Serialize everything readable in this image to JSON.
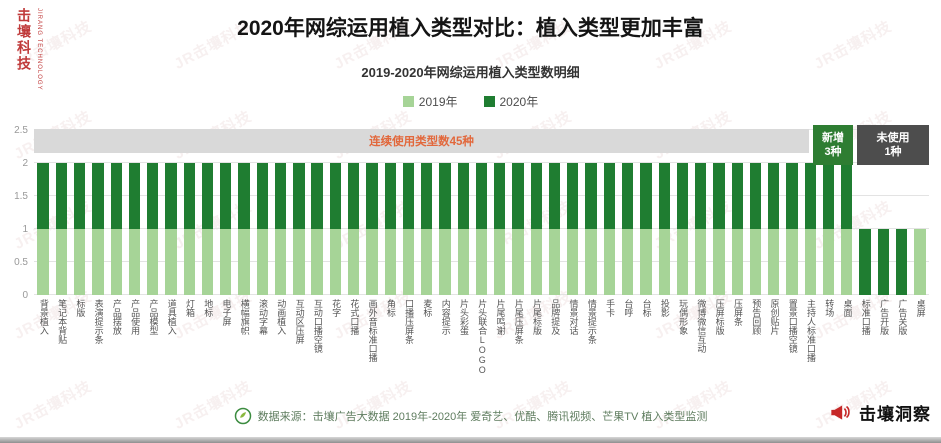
{
  "title": "2020年网综运用植入类型对比：植入类型更加丰富",
  "watermark": {
    "brand_vertical": "击壤科技",
    "brand_en": "JIRANG TECHNOLOGY",
    "tile_text": "JR击壤科技"
  },
  "colors": {
    "bar_2019": "#a6d497",
    "bar_2020": "#1f7d31",
    "band_bg": "#d9d9d9",
    "band_text": "#e2683c",
    "badge_new_bg": "#2e7d32",
    "badge_unused_bg": "#4d4d4d",
    "brand_red": "#c03b3b"
  },
  "chart_data": {
    "type": "bar",
    "subtitle": "2019-2020年网综运用植入类型数明细",
    "stacked": true,
    "ylim": [
      0,
      2.5
    ],
    "yticks": [
      0,
      0.5,
      1,
      1.5,
      2,
      2.5
    ],
    "ytick_labels": [
      "0",
      "0.5",
      "1",
      "1.5",
      "2",
      "2.5"
    ],
    "legend": [
      {
        "name": "2019年",
        "color": "#a6d497"
      },
      {
        "name": "2020年",
        "color": "#1f7d31"
      }
    ],
    "categories": [
      "背景植入",
      "笔记本背贴",
      "标版",
      "表演提示条",
      "产品摆放",
      "产品使用",
      "产品模型",
      "道具植入",
      "灯箱",
      "地标",
      "电子屏",
      "横幅旗帜",
      "滚动字幕",
      "动画植入",
      "互动区压屏",
      "互动口播空镜",
      "花字",
      "花式口播",
      "画外音标准口播",
      "角标",
      "口播压屏条",
      "麦标",
      "内容提示",
      "片头彩蛋",
      "片头联合LOGO",
      "片尾鸣谢",
      "片尾压屏条",
      "片尾标版",
      "品牌提及",
      "情景对话",
      "情景提示条",
      "手卡",
      "台呼",
      "台标",
      "投影",
      "玩偶形象",
      "微博微信互动",
      "压屏标版",
      "压屏条",
      "预告回顾",
      "原创贴片",
      "置景口播空镜",
      "主持人标准口播",
      "转场",
      "桌面",
      "标准口播",
      "广告开版",
      "广告关版",
      "桌屏"
    ],
    "series": [
      {
        "name": "2019年",
        "values": [
          1,
          1,
          1,
          1,
          1,
          1,
          1,
          1,
          1,
          1,
          1,
          1,
          1,
          1,
          1,
          1,
          1,
          1,
          1,
          1,
          1,
          1,
          1,
          1,
          1,
          1,
          1,
          1,
          1,
          1,
          1,
          1,
          1,
          1,
          1,
          1,
          1,
          1,
          1,
          1,
          1,
          1,
          1,
          1,
          1,
          0,
          0,
          0,
          1
        ]
      },
      {
        "name": "2020年",
        "values": [
          1,
          1,
          1,
          1,
          1,
          1,
          1,
          1,
          1,
          1,
          1,
          1,
          1,
          1,
          1,
          1,
          1,
          1,
          1,
          1,
          1,
          1,
          1,
          1,
          1,
          1,
          1,
          1,
          1,
          1,
          1,
          1,
          1,
          1,
          1,
          1,
          1,
          1,
          1,
          1,
          1,
          1,
          1,
          1,
          1,
          1,
          1,
          1,
          0
        ]
      }
    ],
    "annotations": {
      "band": "连续使用类型数45种",
      "new_line1": "新增",
      "new_line2": "3种",
      "unused_line1": "未使用",
      "unused_line2": "1种"
    }
  },
  "footer": {
    "source": "数据来源：击壤广告大数据 2019年-2020年 爱奇艺、优酷、腾讯视频、芒果TV 植入类型监测",
    "insight_brand": "击壤洞察"
  }
}
